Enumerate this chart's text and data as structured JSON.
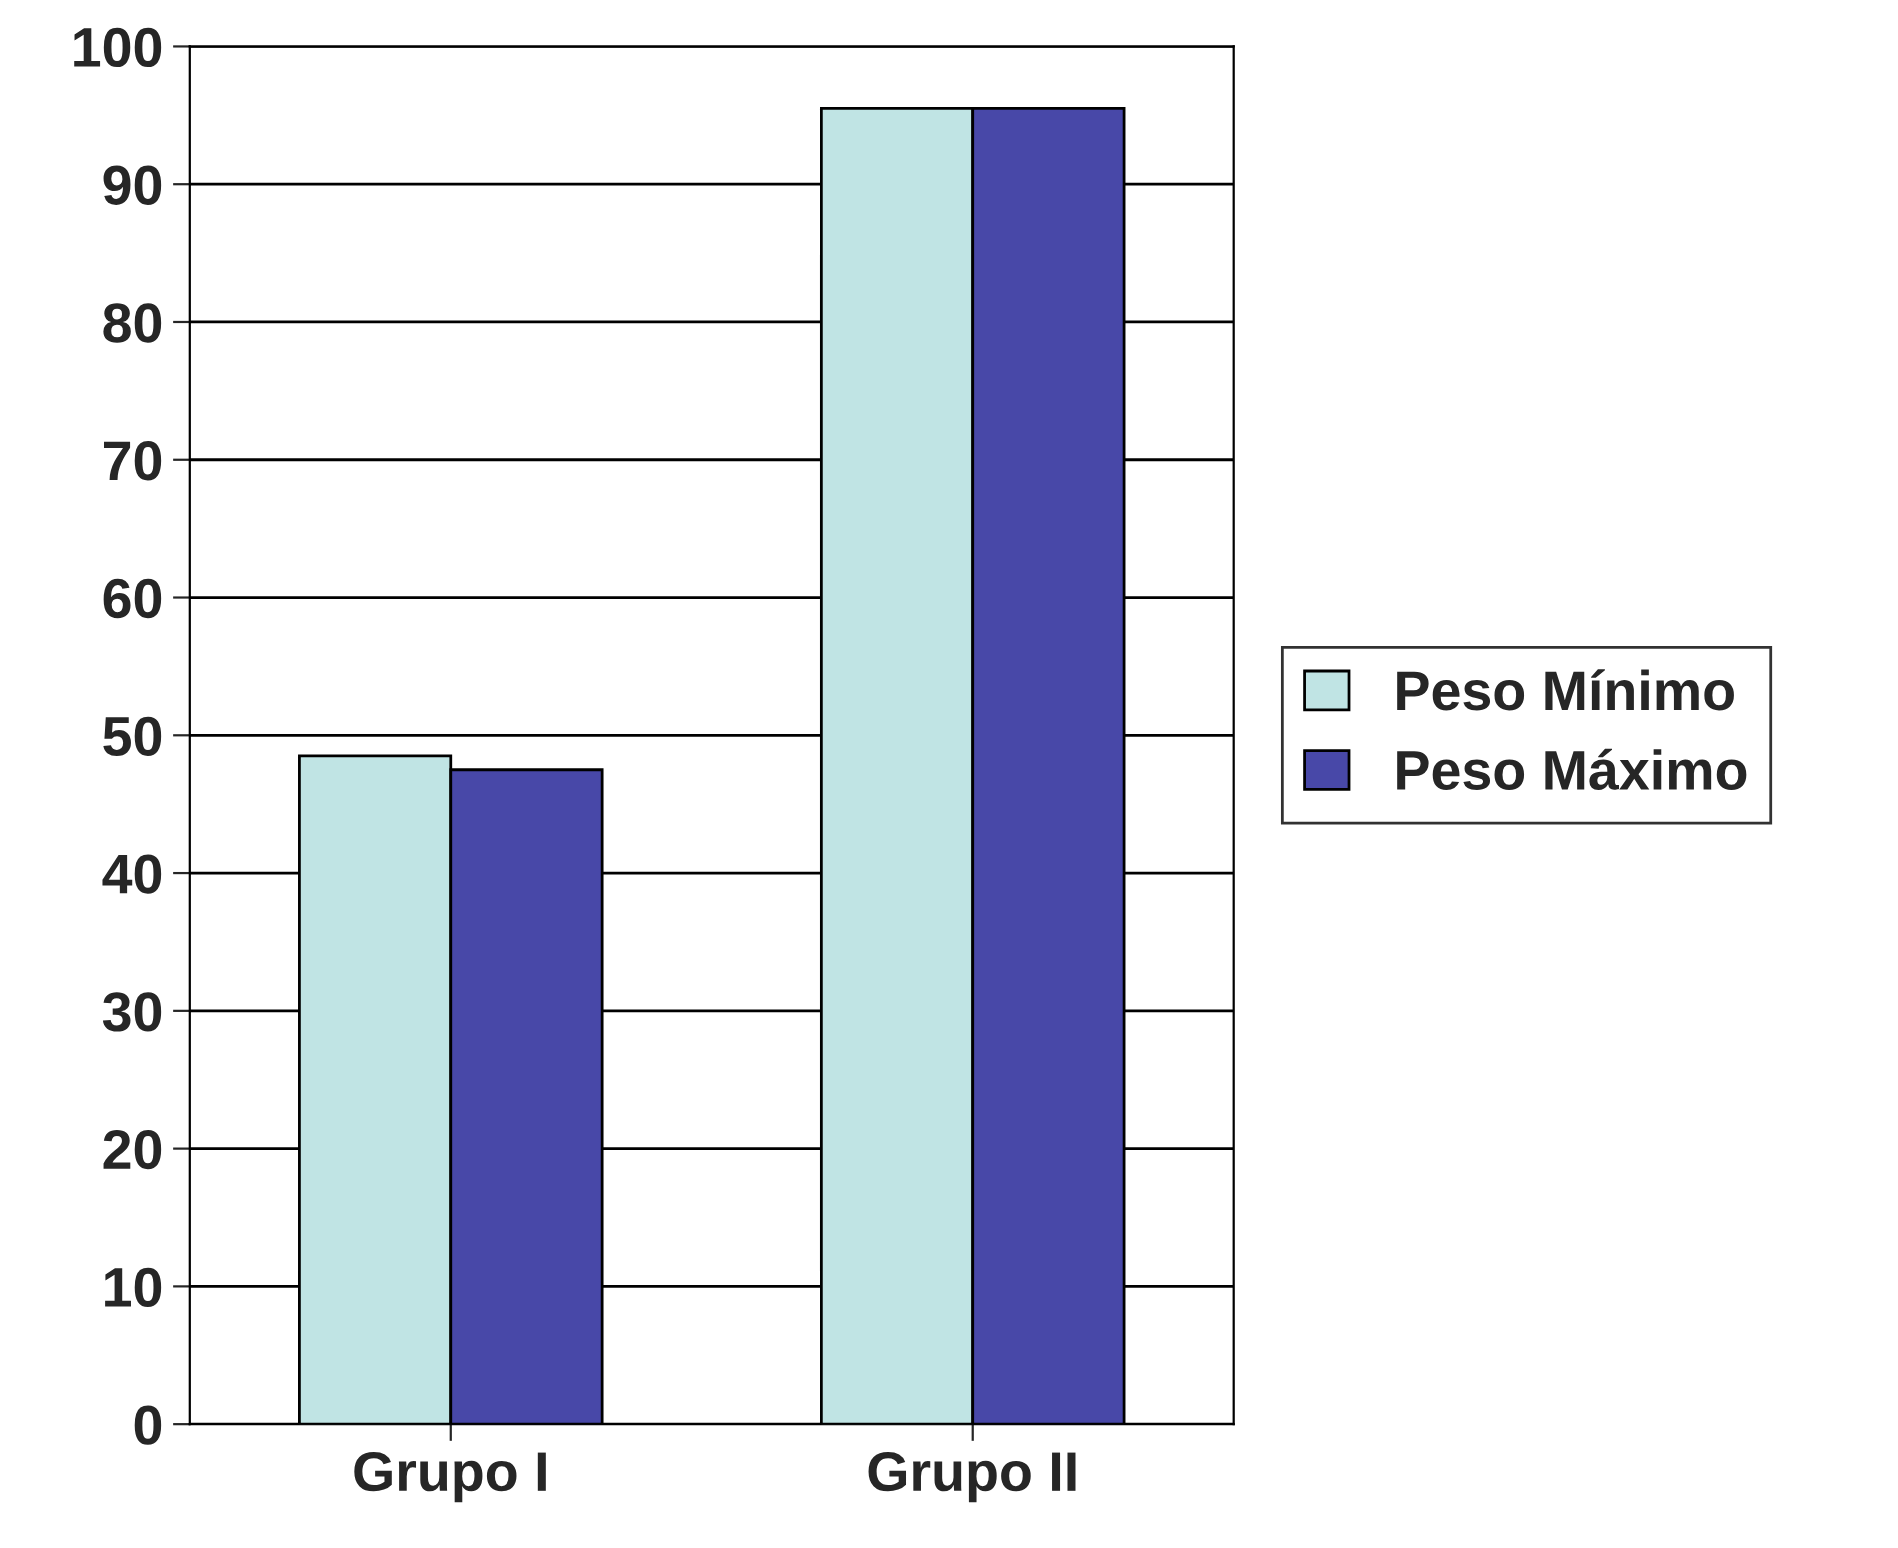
{
  "chart_data": {
    "type": "bar",
    "categories": [
      "Grupo I",
      "Grupo II"
    ],
    "series": [
      {
        "name": "Peso Mínimo",
        "color": "#c0e4e4",
        "values": [
          48.5,
          95.5
        ]
      },
      {
        "name": "Peso Máximo",
        "color": "#4848a8",
        "values": [
          47.5,
          95.5
        ]
      }
    ],
    "ylim": [
      0,
      100
    ],
    "yticks": [
      0,
      10,
      20,
      30,
      40,
      50,
      60,
      70,
      80,
      90,
      100
    ],
    "grid": "y",
    "legend": "right"
  }
}
